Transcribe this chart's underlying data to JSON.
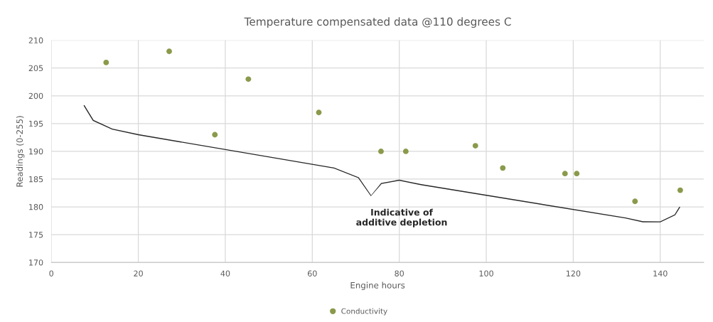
{
  "chart_data": {
    "type": "scatter",
    "title": "Temperature compensated data @110 degrees C",
    "xlabel": "Engine hours",
    "ylabel": "Readings (0-255)",
    "x": [
      12.6,
      27.1,
      37.6,
      45.3,
      61.5,
      75.8,
      81.5,
      97.5,
      103.8,
      118.1,
      120.8,
      134.2,
      144.6
    ],
    "series": [
      {
        "name": "Conductivity",
        "color": "#8a9a4b",
        "values": [
          206,
          208,
          193,
          203,
          197,
          190,
          190,
          191,
          187,
          186,
          186,
          181,
          183
        ]
      }
    ],
    "xlim": [
      0,
      150
    ],
    "xticks": [
      0,
      20,
      40,
      60,
      80,
      100,
      120,
      140
    ],
    "ylim": [
      170,
      210
    ],
    "yticks": [
      170,
      175,
      180,
      185,
      190,
      195,
      200,
      205,
      210
    ],
    "grid": true,
    "legend": "bottom",
    "marker": "circle",
    "annotations": [
      "Indicative of\nadditive depletion"
    ]
  }
}
